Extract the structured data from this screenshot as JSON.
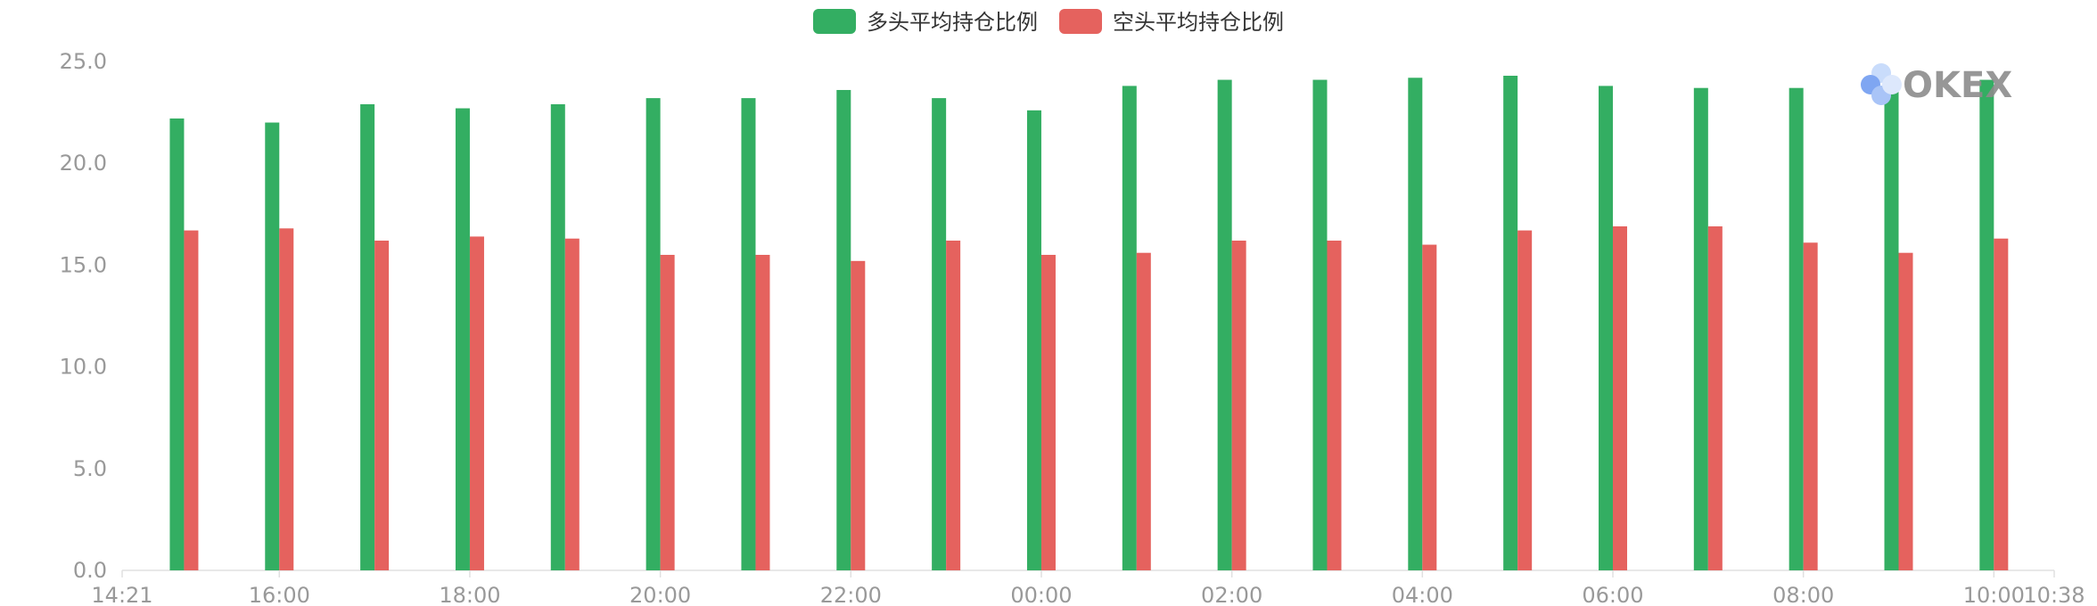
{
  "chart_data": {
    "type": "bar",
    "title": "",
    "xlabel": "",
    "ylabel": "",
    "ylim": [
      0,
      25
    ],
    "y_ticks": [
      "0.0",
      "5.0",
      "10.0",
      "15.0",
      "20.0",
      "25.0"
    ],
    "x_range": [
      "14:21",
      "10:38"
    ],
    "x_tick_labels": [
      "14:21",
      "16:00",
      "18:00",
      "20:00",
      "22:00",
      "00:00",
      "02:00",
      "04:00",
      "06:00",
      "08:00",
      "10:00",
      "10:38"
    ],
    "categories": [
      "15:00",
      "16:00",
      "17:00",
      "18:00",
      "19:00",
      "20:00",
      "21:00",
      "22:00",
      "23:00",
      "00:00",
      "01:00",
      "02:00",
      "03:00",
      "04:00",
      "05:00",
      "06:00",
      "07:00",
      "08:00",
      "09:00",
      "10:00"
    ],
    "series": [
      {
        "name": "多头平均持仓比例",
        "color": "#33ae62",
        "values": [
          22.2,
          22.0,
          22.9,
          22.7,
          22.9,
          23.2,
          23.2,
          23.6,
          23.2,
          22.6,
          23.8,
          24.1,
          24.1,
          24.2,
          24.3,
          23.8,
          23.7,
          23.7,
          24.1,
          24.1
        ]
      },
      {
        "name": "空头平均持仓比例",
        "color": "#e5625e",
        "values": [
          16.7,
          16.8,
          16.2,
          16.4,
          16.3,
          15.5,
          15.5,
          15.2,
          16.2,
          15.5,
          15.6,
          16.2,
          16.2,
          16.0,
          16.7,
          16.9,
          16.9,
          16.1,
          15.6,
          16.3
        ]
      }
    ],
    "legend_position": "top-center",
    "grid": false,
    "watermark": "OKEX"
  }
}
